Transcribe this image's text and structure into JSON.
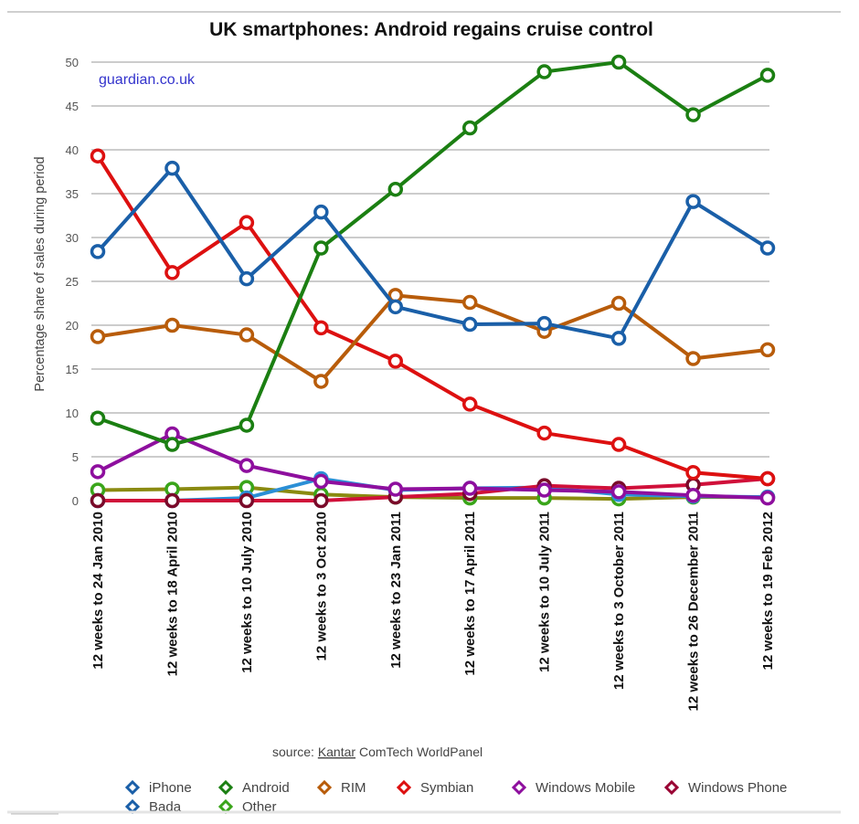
{
  "chart_data": {
    "type": "line",
    "title": "UK smartphones: Android regains cruise control",
    "annotation": "guardian.co.uk",
    "source_prefix": "source: ",
    "source_name": "Kantar",
    "source_rest": " ComTech WorldPanel",
    "xlabel": "",
    "ylabel": "Percentage share of sales during period",
    "ylim": [
      0,
      50
    ],
    "yticks": [
      0,
      5,
      10,
      15,
      20,
      25,
      30,
      35,
      40,
      45,
      50
    ],
    "grid": true,
    "legend_position": "bottom",
    "categories": [
      "12 weeks to 24 Jan 2010",
      "12 weeks to 18 April 2010",
      "12 weeks to 10 July 2010",
      "12 weeks to 3 Oct 2010",
      "12 weeks to 23 Jan 2011",
      "12 weeks to 17 April 2011",
      "12 weeks to 10 July 2011",
      "12 weeks to 3 October 2011",
      "12 weeks to 26 December 2011",
      "12 weeks to 19 Feb 2012"
    ],
    "series": [
      {
        "name": "Other",
        "color": "#8a8a10",
        "marker_color": "#3aa51a",
        "values": [
          1.2,
          1.3,
          1.5,
          0.7,
          0.4,
          0.3,
          0.3,
          0.2,
          0.4,
          0.4
        ]
      },
      {
        "name": "Bada",
        "color": "#2b8fd6",
        "marker_color": "#2b8fd6",
        "values": [
          0,
          0,
          0.3,
          2.5,
          1.2,
          1.4,
          1.5,
          0.7,
          0.5,
          0.4
        ]
      },
      {
        "name": "Windows Phone",
        "color": "#d0103a",
        "marker_color": "#7a0a2a",
        "values": [
          0,
          0,
          0,
          0,
          0.4,
          0.8,
          1.7,
          1.4,
          1.8,
          2.5
        ]
      },
      {
        "name": "Windows Mobile",
        "color": "#8e0f9e",
        "marker_color": "#8e0f9e",
        "values": [
          3.3,
          7.6,
          4.0,
          2.2,
          1.3,
          1.4,
          1.2,
          1.0,
          0.6,
          0.3
        ]
      },
      {
        "name": "Symbian",
        "color": "#dd1010",
        "marker_color": "#dd1010",
        "values": [
          39.3,
          26.0,
          31.7,
          19.7,
          15.9,
          11.0,
          7.7,
          6.4,
          3.2,
          2.5
        ]
      },
      {
        "name": "RIM",
        "color": "#b85c0a",
        "marker_color": "#b85c0a",
        "values": [
          18.7,
          20.0,
          18.9,
          13.6,
          23.4,
          22.6,
          19.3,
          22.5,
          16.2,
          17.2
        ]
      },
      {
        "name": "Android",
        "color": "#1b7f12",
        "marker_color": "#1b7f12",
        "values": [
          9.4,
          6.4,
          8.6,
          28.8,
          35.5,
          42.5,
          48.9,
          50.0,
          44.0,
          48.5
        ]
      },
      {
        "name": "iPhone",
        "color": "#1a5fa8",
        "marker_color": "#1a5fa8",
        "values": [
          28.4,
          37.9,
          25.3,
          32.9,
          22.1,
          20.1,
          20.2,
          18.5,
          34.1,
          28.8
        ]
      }
    ],
    "legend": [
      {
        "name": "iPhone",
        "color": "#1a5fa8"
      },
      {
        "name": "Android",
        "color": "#1b7f12"
      },
      {
        "name": "RIM",
        "color": "#b85c0a"
      },
      {
        "name": "Symbian",
        "color": "#dd1010"
      },
      {
        "name": "Windows Mobile",
        "color": "#8e0f9e"
      },
      {
        "name": "Windows Phone",
        "color": "#990033"
      },
      {
        "name": "Bada",
        "color": "#1a5fa8"
      },
      {
        "name": "Other",
        "color": "#3aa51a"
      }
    ]
  }
}
